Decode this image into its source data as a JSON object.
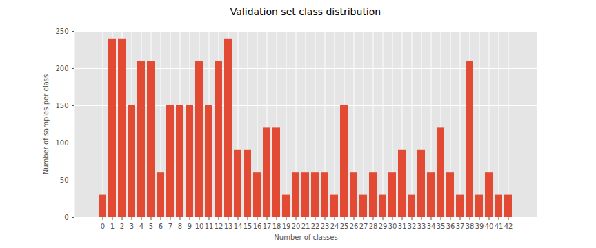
{
  "chart_data": {
    "type": "bar",
    "title": "Validation set class distribution",
    "x_label": "Number of classes",
    "y_label": "Number of samples per class",
    "categories": [
      0,
      1,
      2,
      3,
      4,
      5,
      6,
      7,
      8,
      9,
      10,
      11,
      12,
      13,
      14,
      15,
      16,
      17,
      18,
      19,
      20,
      21,
      22,
      23,
      24,
      25,
      26,
      27,
      28,
      29,
      30,
      31,
      32,
      33,
      34,
      35,
      36,
      37,
      38,
      39,
      40,
      41,
      42
    ],
    "values": [
      30,
      240,
      240,
      150,
      210,
      210,
      60,
      150,
      150,
      150,
      210,
      150,
      210,
      240,
      90,
      90,
      60,
      120,
      120,
      30,
      60,
      60,
      60,
      60,
      30,
      150,
      60,
      30,
      60,
      30,
      60,
      90,
      30,
      90,
      60,
      120,
      60,
      30,
      210,
      30,
      60,
      30,
      30
    ],
    "color": "#E24A33",
    "ylim": [
      0,
      250
    ],
    "yticks": [
      0,
      50,
      100,
      150,
      200,
      250
    ],
    "grid": true
  }
}
